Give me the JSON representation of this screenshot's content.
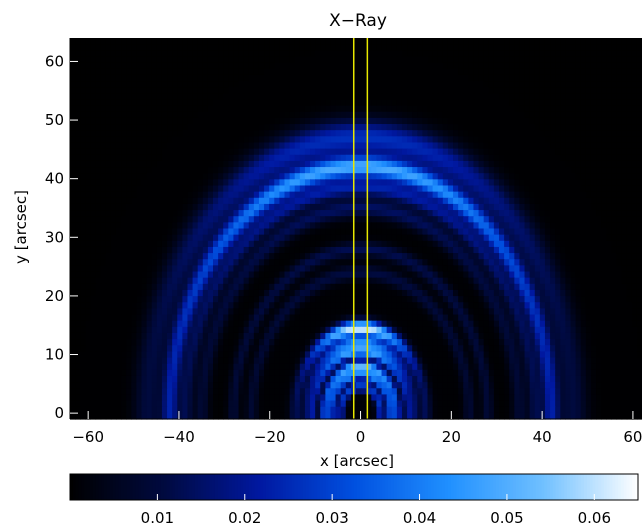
{
  "chart_data": [
    {
      "type": "heatmap",
      "title": "X−Ray",
      "xlabel": "x [arcsec]",
      "ylabel": "y [arcsec]",
      "xlim": [
        -64,
        62
      ],
      "ylim": [
        -1,
        64
      ],
      "xticks": [
        {
          "value": -60,
          "label": "−60"
        },
        {
          "value": -40,
          "label": "−40"
        },
        {
          "value": -20,
          "label": "−20"
        },
        {
          "value": 0,
          "label": "0"
        },
        {
          "value": 20,
          "label": "20"
        },
        {
          "value": 40,
          "label": "40"
        },
        {
          "value": 60,
          "label": "60"
        }
      ],
      "yticks": [
        {
          "value": 0,
          "label": "0"
        },
        {
          "value": 10,
          "label": "10"
        },
        {
          "value": 20,
          "label": "20"
        },
        {
          "value": 30,
          "label": "30"
        },
        {
          "value": 40,
          "label": "40"
        },
        {
          "value": 50,
          "label": "50"
        },
        {
          "value": 60,
          "label": "60"
        }
      ],
      "colormap": [
        "#000000",
        "#000a40",
        "#0018a0",
        "#0050e0",
        "#2090ff",
        "#70c0ff",
        "#ffffff"
      ],
      "arcs": [
        {
          "radius": 47,
          "width": 3.0,
          "intensity": 0.026
        },
        {
          "radius": 42,
          "width": 1.8,
          "intensity": 0.048
        },
        {
          "radius": 38.5,
          "width": 1.5,
          "intensity": 0.022
        },
        {
          "radius": 35,
          "width": 1.5,
          "intensity": 0.014
        },
        {
          "radius": 28,
          "width": 1.2,
          "intensity": 0.012
        },
        {
          "radius": 24,
          "width": 1.2,
          "intensity": 0.01
        }
      ],
      "core_arcs": [
        {
          "radius": 14.5,
          "width": 1.3,
          "intensity": 0.062
        },
        {
          "radius": 12,
          "width": 1.0,
          "intensity": 0.04
        },
        {
          "radius": 10.5,
          "width": 0.9,
          "intensity": 0.045
        },
        {
          "radius": 8,
          "width": 1.0,
          "intensity": 0.05
        },
        {
          "radius": 6.5,
          "width": 0.8,
          "intensity": 0.036
        },
        {
          "radius": 4.5,
          "width": 0.9,
          "intensity": 0.03
        }
      ],
      "slit_lines": {
        "x": [
          -1.5,
          1.5
        ],
        "color": "#e8e800"
      }
    },
    {
      "type": "heatmap",
      "subtype": "colorbar",
      "range": [
        0,
        0.065
      ],
      "ticks": [
        {
          "value": 0.01,
          "label": "0.01"
        },
        {
          "value": 0.02,
          "label": "0.02"
        },
        {
          "value": 0.03,
          "label": "0.03"
        },
        {
          "value": 0.04,
          "label": "0.04"
        },
        {
          "value": 0.05,
          "label": "0.05"
        },
        {
          "value": 0.06,
          "label": "0.06"
        }
      ]
    }
  ]
}
